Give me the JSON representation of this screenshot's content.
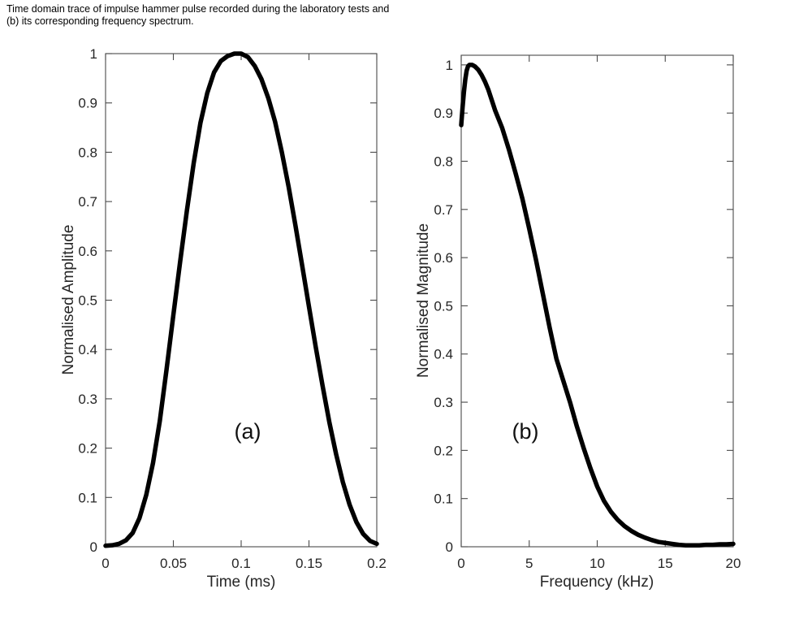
{
  "caption": {
    "line1": "Time domain trace of impulse hammer pulse recorded during the laboratory tests and",
    "line2": "(b) its corresponding frequency spectrum."
  },
  "colors": {
    "curve": "#000000",
    "axis": "#4a4a4a",
    "text": "#262626",
    "background": "#ffffff"
  },
  "chart_data": [
    {
      "type": "line",
      "panel_label": "(a)",
      "xlabel": "Time (ms)",
      "ylabel": "Normalised Amplitude",
      "xlim": [
        0,
        0.2
      ],
      "ylim": [
        0,
        1
      ],
      "grid": false,
      "legend": "none",
      "xticks": [
        0,
        0.05,
        0.1,
        0.15,
        0.2
      ],
      "xtick_labels": [
        "0",
        "0.05",
        "0.1",
        "0.15",
        "0.2"
      ],
      "yticks": [
        0,
        0.1,
        0.2,
        0.3,
        0.4,
        0.5,
        0.6,
        0.7,
        0.8,
        0.9,
        1
      ],
      "ytick_labels": [
        "0",
        "0.1",
        "0.2",
        "0.3",
        "0.4",
        "0.5",
        "0.6",
        "0.7",
        "0.8",
        "0.9",
        "1"
      ],
      "series": [
        {
          "name": "impulse-hammer-pulse",
          "x": [
            0,
            0.005,
            0.01,
            0.015,
            0.02,
            0.025,
            0.03,
            0.035,
            0.04,
            0.045,
            0.05,
            0.055,
            0.06,
            0.065,
            0.07,
            0.075,
            0.08,
            0.085,
            0.09,
            0.095,
            0.1,
            0.105,
            0.11,
            0.115,
            0.12,
            0.125,
            0.13,
            0.135,
            0.14,
            0.145,
            0.15,
            0.155,
            0.16,
            0.165,
            0.17,
            0.175,
            0.18,
            0.185,
            0.19,
            0.195,
            0.2
          ],
          "y": [
            0.002,
            0.003,
            0.006,
            0.013,
            0.028,
            0.058,
            0.105,
            0.17,
            0.255,
            0.36,
            0.47,
            0.578,
            0.682,
            0.778,
            0.86,
            0.92,
            0.962,
            0.985,
            0.995,
            1.0,
            1.0,
            0.993,
            0.975,
            0.948,
            0.91,
            0.862,
            0.8,
            0.73,
            0.652,
            0.57,
            0.487,
            0.405,
            0.327,
            0.253,
            0.188,
            0.131,
            0.085,
            0.05,
            0.026,
            0.012,
            0.006
          ]
        }
      ]
    },
    {
      "type": "line",
      "panel_label": "(b)",
      "xlabel": "Frequency (kHz)",
      "ylabel": "Normalised Magnitude",
      "xlim": [
        0,
        20
      ],
      "ylim": [
        0,
        1.02
      ],
      "grid": false,
      "legend": "none",
      "xticks": [
        0,
        5,
        10,
        15,
        20
      ],
      "xtick_labels": [
        "0",
        "5",
        "10",
        "15",
        "20"
      ],
      "yticks": [
        0,
        0.1,
        0.2,
        0.3,
        0.4,
        0.5,
        0.6,
        0.7,
        0.8,
        0.9,
        1
      ],
      "ytick_labels": [
        "0",
        "0.1",
        "0.2",
        "0.3",
        "0.4",
        "0.5",
        "0.6",
        "0.7",
        "0.8",
        "0.9",
        "1"
      ],
      "series": [
        {
          "name": "frequency-spectrum",
          "x": [
            0,
            0.1,
            0.2,
            0.3,
            0.4,
            0.5,
            0.6,
            0.8,
            1.0,
            1.25,
            1.5,
            1.75,
            2.0,
            2.5,
            3.0,
            3.5,
            4.0,
            4.5,
            5.0,
            5.5,
            6.0,
            6.5,
            7.0,
            7.5,
            8.0,
            8.5,
            9.0,
            9.5,
            10.0,
            10.5,
            11.0,
            11.5,
            12.0,
            12.5,
            13.0,
            13.5,
            14.0,
            14.5,
            15.0,
            15.5,
            16.0,
            16.5,
            17.0,
            17.5,
            18.0,
            18.5,
            19.0,
            19.5,
            20.0
          ],
          "y": [
            0.875,
            0.912,
            0.944,
            0.97,
            0.988,
            0.997,
            1.0,
            1.0,
            0.997,
            0.99,
            0.979,
            0.965,
            0.948,
            0.905,
            0.87,
            0.825,
            0.775,
            0.722,
            0.66,
            0.595,
            0.525,
            0.455,
            0.39,
            0.345,
            0.3,
            0.25,
            0.205,
            0.163,
            0.125,
            0.095,
            0.073,
            0.056,
            0.043,
            0.033,
            0.025,
            0.019,
            0.014,
            0.01,
            0.008,
            0.006,
            0.004,
            0.003,
            0.003,
            0.003,
            0.004,
            0.004,
            0.005,
            0.005,
            0.006
          ]
        }
      ]
    }
  ]
}
